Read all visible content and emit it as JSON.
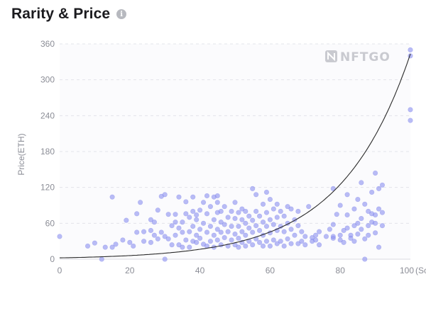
{
  "header": {
    "title": "Rarity & Price",
    "info_icon": "info-icon",
    "info_glyph": "i"
  },
  "watermark": {
    "text": "NFTGO",
    "icon": "nftgo-logo-icon"
  },
  "colors": {
    "point": "#8e93f0",
    "point_stroke": "#6d72e6",
    "curve": "#2b2b2b",
    "grid": "#e3e4ea",
    "axis_text": "#8b8d96",
    "plot_bg": "#fbfbfd"
  },
  "chart_data": {
    "type": "scatter",
    "xlabel": "(Score)",
    "ylabel": "Price(ETH)",
    "xlim": [
      0,
      100
    ],
    "ylim": [
      0,
      360
    ],
    "x_ticks": [
      0,
      20,
      40,
      60,
      80,
      100
    ],
    "y_ticks": [
      0,
      60,
      120,
      180,
      240,
      300,
      360
    ],
    "grid": true,
    "series": [
      {
        "points": [
          [
            0,
            38
          ],
          [
            8,
            22
          ],
          [
            10,
            27
          ],
          [
            12,
            0
          ],
          [
            13,
            20
          ],
          [
            15,
            104
          ],
          [
            15,
            20
          ],
          [
            16,
            25
          ],
          [
            18,
            32
          ],
          [
            19,
            65
          ],
          [
            20,
            28
          ],
          [
            21,
            22
          ],
          [
            22,
            45
          ],
          [
            22,
            76
          ],
          [
            23,
            95
          ],
          [
            24,
            30
          ],
          [
            24,
            46
          ],
          [
            26,
            28
          ],
          [
            26,
            48
          ],
          [
            26,
            66
          ],
          [
            27,
            40
          ],
          [
            27,
            62
          ],
          [
            28,
            82
          ],
          [
            28,
            34
          ],
          [
            29,
            45
          ],
          [
            29,
            105
          ],
          [
            30,
            108
          ],
          [
            30,
            38
          ],
          [
            30,
            0
          ],
          [
            31,
            75
          ],
          [
            31,
            34
          ],
          [
            32,
            24
          ],
          [
            32,
            56
          ],
          [
            33,
            62
          ],
          [
            33,
            40
          ],
          [
            33,
            75
          ],
          [
            34,
            104
          ],
          [
            34,
            24
          ],
          [
            34,
            52
          ],
          [
            35,
            20
          ],
          [
            35,
            45
          ],
          [
            35,
            62
          ],
          [
            36,
            32
          ],
          [
            36,
            76
          ],
          [
            36,
            96
          ],
          [
            37,
            20
          ],
          [
            37,
            46
          ],
          [
            37,
            70
          ],
          [
            38,
            30
          ],
          [
            38,
            55
          ],
          [
            38,
            80
          ],
          [
            38,
            104
          ],
          [
            39,
            28
          ],
          [
            39,
            40
          ],
          [
            39,
            74
          ],
          [
            39,
            66
          ],
          [
            40,
            35
          ],
          [
            40,
            50
          ],
          [
            40,
            82
          ],
          [
            41,
            25
          ],
          [
            41,
            60
          ],
          [
            41,
            95
          ],
          [
            42,
            22
          ],
          [
            42,
            45
          ],
          [
            42,
            76
          ],
          [
            42,
            106
          ],
          [
            43,
            30
          ],
          [
            43,
            55
          ],
          [
            43,
            88
          ],
          [
            44,
            20
          ],
          [
            44,
            40
          ],
          [
            44,
            66
          ],
          [
            44,
            104
          ],
          [
            45,
            32
          ],
          [
            45,
            50
          ],
          [
            45,
            78
          ],
          [
            45,
            95
          ],
          [
            45,
            106
          ],
          [
            46,
            24
          ],
          [
            46,
            45
          ],
          [
            46,
            62
          ],
          [
            46,
            80
          ],
          [
            47,
            36
          ],
          [
            47,
            58
          ],
          [
            47,
            88
          ],
          [
            48,
            22
          ],
          [
            48,
            46
          ],
          [
            48,
            70
          ],
          [
            49,
            32
          ],
          [
            49,
            55
          ],
          [
            49,
            80
          ],
          [
            50,
            24
          ],
          [
            50,
            42
          ],
          [
            50,
            68
          ],
          [
            50,
            95
          ],
          [
            51,
            20
          ],
          [
            51,
            35
          ],
          [
            51,
            55
          ],
          [
            51,
            78
          ],
          [
            52,
            28
          ],
          [
            52,
            46
          ],
          [
            52,
            66
          ],
          [
            52,
            84
          ],
          [
            53,
            22
          ],
          [
            53,
            40
          ],
          [
            53,
            60
          ],
          [
            53,
            80
          ],
          [
            54,
            30
          ],
          [
            54,
            52
          ],
          [
            54,
            72
          ],
          [
            55,
            24
          ],
          [
            55,
            45
          ],
          [
            55,
            65
          ],
          [
            55,
            118
          ],
          [
            56,
            34
          ],
          [
            56,
            56
          ],
          [
            56,
            80
          ],
          [
            56,
            108
          ],
          [
            57,
            28
          ],
          [
            57,
            48
          ],
          [
            57,
            72
          ],
          [
            58,
            22
          ],
          [
            58,
            40
          ],
          [
            58,
            62
          ],
          [
            58,
            92
          ],
          [
            59,
            30
          ],
          [
            59,
            55
          ],
          [
            59,
            78
          ],
          [
            59,
            112
          ],
          [
            60,
            22
          ],
          [
            60,
            44
          ],
          [
            60,
            66
          ],
          [
            60,
            100
          ],
          [
            61,
            32
          ],
          [
            61,
            58
          ],
          [
            61,
            84
          ],
          [
            62,
            26
          ],
          [
            62,
            48
          ],
          [
            62,
            70
          ],
          [
            62,
            92
          ],
          [
            63,
            30
          ],
          [
            63,
            55
          ],
          [
            63,
            80
          ],
          [
            64,
            22
          ],
          [
            64,
            46
          ],
          [
            64,
            72
          ],
          [
            65,
            34
          ],
          [
            65,
            60
          ],
          [
            65,
            88
          ],
          [
            66,
            26
          ],
          [
            66,
            50
          ],
          [
            66,
            84
          ],
          [
            67,
            40
          ],
          [
            67,
            66
          ],
          [
            68,
            26
          ],
          [
            68,
            56
          ],
          [
            68,
            80
          ],
          [
            69,
            30
          ],
          [
            69,
            46
          ],
          [
            70,
            24
          ],
          [
            70,
            38
          ],
          [
            71,
            88
          ],
          [
            72,
            36
          ],
          [
            72,
            30
          ],
          [
            73,
            32
          ],
          [
            73,
            40
          ],
          [
            74,
            24
          ],
          [
            74,
            46
          ],
          [
            76,
            38
          ],
          [
            77,
            50
          ],
          [
            78,
            35
          ],
          [
            78,
            38
          ],
          [
            78,
            58
          ],
          [
            78,
            118
          ],
          [
            79,
            75
          ],
          [
            80,
            32
          ],
          [
            80,
            40
          ],
          [
            80,
            90
          ],
          [
            81,
            48
          ],
          [
            81,
            28
          ],
          [
            82,
            52
          ],
          [
            82,
            74
          ],
          [
            82,
            108
          ],
          [
            83,
            40
          ],
          [
            83,
            35
          ],
          [
            84,
            30
          ],
          [
            84,
            56
          ],
          [
            84,
            84
          ],
          [
            85,
            60
          ],
          [
            85,
            42
          ],
          [
            85,
            100
          ],
          [
            86,
            128
          ],
          [
            86,
            50
          ],
          [
            86,
            68
          ],
          [
            87,
            92
          ],
          [
            87,
            34
          ],
          [
            87,
            0
          ],
          [
            88,
            80
          ],
          [
            88,
            56
          ],
          [
            88,
            40
          ],
          [
            89,
            76
          ],
          [
            89,
            62
          ],
          [
            89,
            112
          ],
          [
            90,
            44
          ],
          [
            90,
            74
          ],
          [
            90,
            144
          ],
          [
            90,
            60
          ],
          [
            91,
            118
          ],
          [
            91,
            84
          ],
          [
            91,
            20
          ],
          [
            92,
            124
          ],
          [
            92,
            56
          ],
          [
            92,
            78
          ],
          [
            100,
            350
          ],
          [
            100,
            340
          ],
          [
            100,
            250
          ],
          [
            100,
            232
          ]
        ]
      }
    ],
    "trend_curve": {
      "type": "exponential",
      "a": 2.2,
      "b": 0.0505
    }
  }
}
